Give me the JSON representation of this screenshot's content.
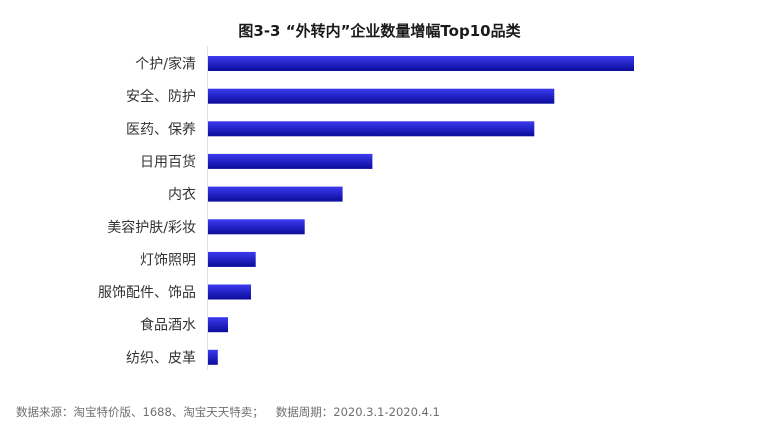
{
  "chart_data": {
    "type": "bar",
    "orientation": "horizontal",
    "title": "图3-3 “外转内”企业数量增幅Top10品类",
    "xlabel": "",
    "ylabel": "",
    "categories": [
      "个护/家清",
      "安全、防护",
      "医药、保养",
      "日用百货",
      "内衣",
      "美容护肤/彩妆",
      "灯饰照明",
      "服饰配件、饰品",
      "食品酒水",
      "纺织、皮革"
    ],
    "values": [
      100,
      81.3,
      76.6,
      38.6,
      31.6,
      22.7,
      11.2,
      10.1,
      4.7,
      2.3
    ],
    "xlim": [
      0,
      100
    ],
    "grid": false,
    "legend": "none",
    "bar_color_top": "#3b3bf0",
    "bar_color_bottom": "#0b0b9a"
  },
  "footnote": {
    "source": "数据来源：淘宝特价版、1688、淘宝天天特卖；",
    "period": "数据周期：2020.3.1-2020.4.1"
  }
}
